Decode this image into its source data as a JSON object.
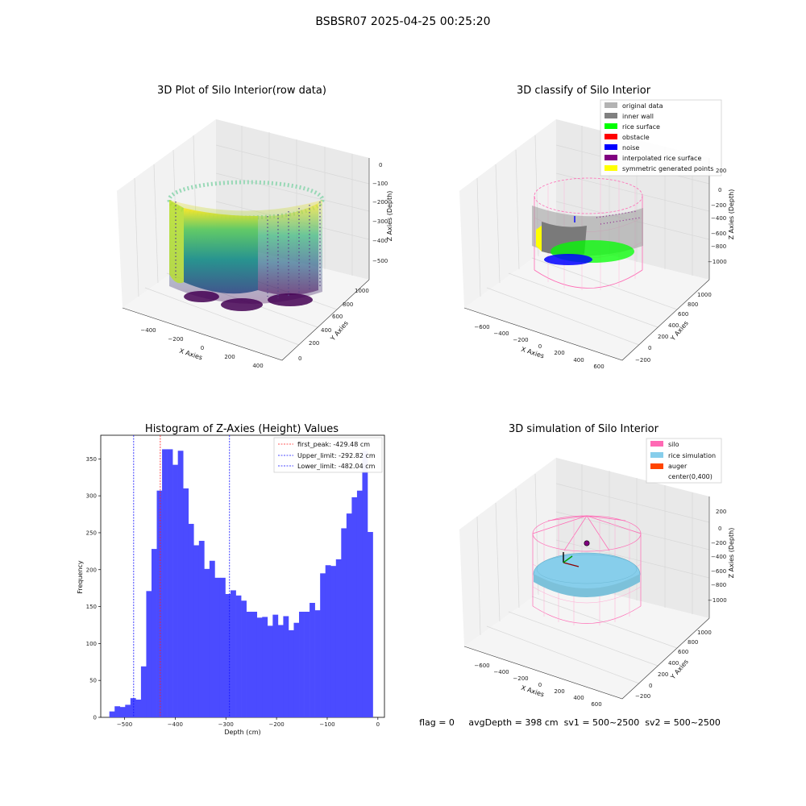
{
  "figure": {
    "suptitle": "BSBSR07 2025-04-25 00:25:20",
    "status_line": "flag = 0     avgDepth = 398 cm  sv1 = 500~2500  sv2 = 500~2500"
  },
  "colors": {
    "histogram_bar": "#4b4bff",
    "first_peak_line": "#ff2020",
    "limit_line": "#1010ff",
    "original_data": "#b3b3b3",
    "inner_wall": "#808080",
    "rice_surface": "#00ff00",
    "obstacle": "#ff0000",
    "noise": "#0000ff",
    "interpolated_rice_surface": "#800080",
    "symmetric_generated_points": "#ffff00",
    "silo": "#ff69b4",
    "rice_simulation": "#87ceeb",
    "auger": "#ff4500"
  },
  "panels": {
    "raw": {
      "title": "3D Plot of Silo Interior(row data)",
      "xlabel": "X Axies",
      "ylabel": "Y Axies",
      "zlabel": "Z Axies (Depth)",
      "xticks": [
        "−400",
        "−200",
        "0",
        "200",
        "400"
      ],
      "yticks": [
        "0",
        "200",
        "400",
        "600",
        "800",
        "1000"
      ],
      "zticks": [
        "0",
        "−100",
        "−200",
        "−300",
        "−400",
        "−500"
      ]
    },
    "classify": {
      "title": "3D classify of Silo Interior",
      "xlabel": "X Axies",
      "ylabel": "Y Axies",
      "zlabel": "Z Axies (Depth)",
      "xticks": [
        "−600",
        "−400",
        "−200",
        "0",
        "200",
        "400",
        "600"
      ],
      "yticks": [
        "−200",
        "0",
        "200",
        "400",
        "600",
        "800",
        "1000"
      ],
      "zticks": [
        "200",
        "0",
        "−200",
        "−400",
        "−600",
        "−800",
        "−1000"
      ],
      "legend": [
        {
          "label": "original data",
          "color": "#b3b3b3"
        },
        {
          "label": "inner wall",
          "color": "#808080"
        },
        {
          "label": "rice surface",
          "color": "#00ff00"
        },
        {
          "label": "obstacle",
          "color": "#ff0000"
        },
        {
          "label": "noise",
          "color": "#0000ff"
        },
        {
          "label": "interpolated rice surface",
          "color": "#800080"
        },
        {
          "label": "symmetric generated points",
          "color": "#ffff00"
        }
      ]
    },
    "simulation": {
      "title": "3D simulation of Silo Interior",
      "xlabel": "X Axies",
      "ylabel": "Y Axies",
      "zlabel": "Z Axies (Depth)",
      "xticks": [
        "−600",
        "−400",
        "−200",
        "0",
        "200",
        "400",
        "600"
      ],
      "yticks": [
        "−200",
        "0",
        "200",
        "400",
        "600",
        "800",
        "1000"
      ],
      "zticks": [
        "200",
        "0",
        "−200",
        "−400",
        "−600",
        "−800",
        "−1000"
      ],
      "legend": [
        {
          "label": "silo",
          "color": "#ff69b4"
        },
        {
          "label": "rice simulation",
          "color": "#87ceeb"
        },
        {
          "label": "auger",
          "color": "#ff4500"
        },
        {
          "label": "center(0,400)",
          "color": ""
        }
      ]
    }
  },
  "chart_data": [
    {
      "type": "bar",
      "title": "Histogram of Z-Axies (Height) Values",
      "xlabel": "Depth (cm)",
      "ylabel": "Frequency",
      "xlim": [
        -547,
        13
      ],
      "ylim": [
        0,
        382
      ],
      "xticks": [
        -500,
        -400,
        -300,
        -200,
        -100,
        0
      ],
      "xtick_labels": [
        "−500",
        "−400",
        "−300",
        "−200",
        "−100",
        "0"
      ],
      "yticks": [
        0,
        50,
        100,
        150,
        200,
        250,
        300,
        350
      ],
      "bin_start": -530,
      "bin_width": 10.4,
      "values": [
        8,
        15,
        14,
        17,
        26,
        24,
        69,
        171,
        228,
        307,
        363,
        363,
        342,
        361,
        310,
        262,
        233,
        239,
        201,
        212,
        189,
        189,
        167,
        172,
        165,
        158,
        143,
        143,
        135,
        136,
        124,
        139,
        125,
        137,
        118,
        128,
        143,
        143,
        155,
        145,
        195,
        206,
        205,
        214,
        256,
        276,
        298,
        307,
        361,
        251
      ],
      "reference_lines": [
        {
          "label": "first_peak: -429.48 cm",
          "x": -429.48,
          "style": "first_peak"
        },
        {
          "label": "Upper_limit: -292.82 cm",
          "x": -292.82,
          "style": "limit"
        },
        {
          "label": "Lower_limit: -482.04 cm",
          "x": -482.04,
          "style": "limit"
        }
      ],
      "legend_position": "upper right"
    }
  ]
}
